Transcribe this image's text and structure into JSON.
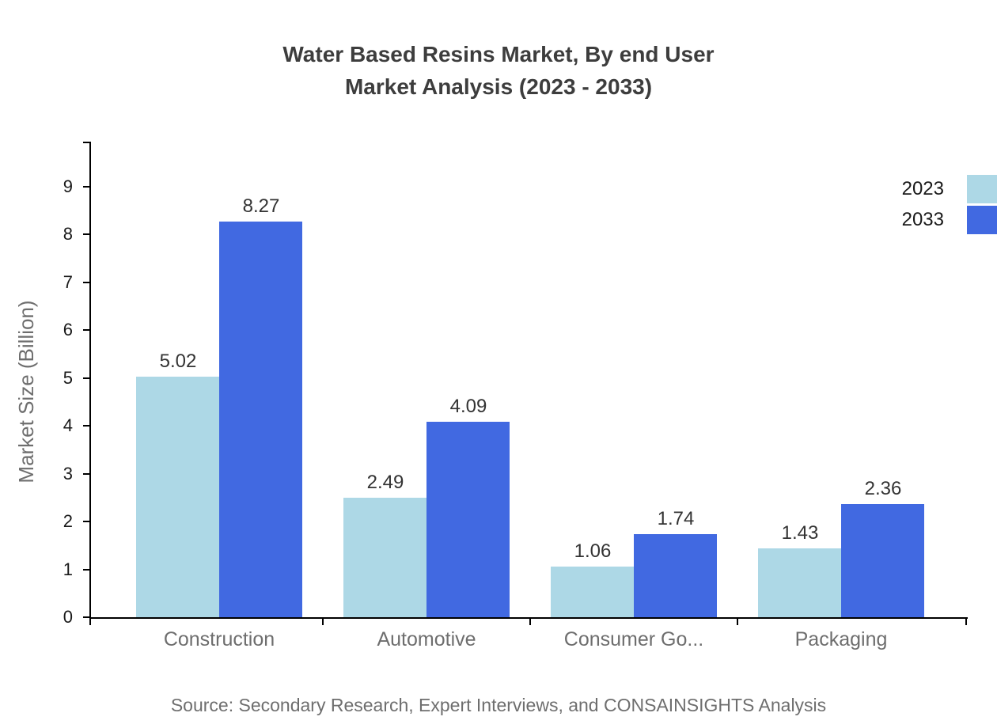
{
  "title": {
    "line1": "Water Based Resins Market, By end User",
    "line2": "Market Analysis (2023 - 2033)"
  },
  "ylabel": "Market Size (Billion)",
  "source": "Source: Secondary Research, Expert Interviews, and CONSAINSIGHTS Analysis",
  "legend": [
    {
      "label": "2023",
      "color": "#ADD8E6"
    },
    {
      "label": "2033",
      "color": "#4169E1"
    }
  ],
  "colors": {
    "series_2023": "#ADD8E6",
    "series_2033": "#4169E1",
    "axis": "#000000",
    "title_text": "#3D3D3D",
    "tick_text": "#1A1A1A",
    "muted_text": "#6E6E6E",
    "value_text": "#333333",
    "legend_text": "#1A1A1A"
  },
  "chart_data": {
    "type": "bar",
    "categories": [
      "Construction",
      "Automotive",
      "Consumer Go...",
      "Packaging"
    ],
    "series": [
      {
        "name": "2023",
        "color": "#ADD8E6",
        "values": [
          5.02,
          2.49,
          1.06,
          1.43
        ]
      },
      {
        "name": "2033",
        "color": "#4169E1",
        "values": [
          8.27,
          4.09,
          1.74,
          2.36
        ]
      }
    ],
    "title": "Water Based Resins Market, By end User Market Analysis (2023 - 2033)",
    "xlabel": "",
    "ylabel": "Market Size (Billion)",
    "ylim": [
      0,
      9.9
    ],
    "yticks": [
      0,
      1,
      2,
      3,
      4,
      5,
      6,
      7,
      8,
      9
    ],
    "grid": false,
    "legend_position": "top-right",
    "value_labels": true,
    "bar_value_format": "2-decimals"
  }
}
